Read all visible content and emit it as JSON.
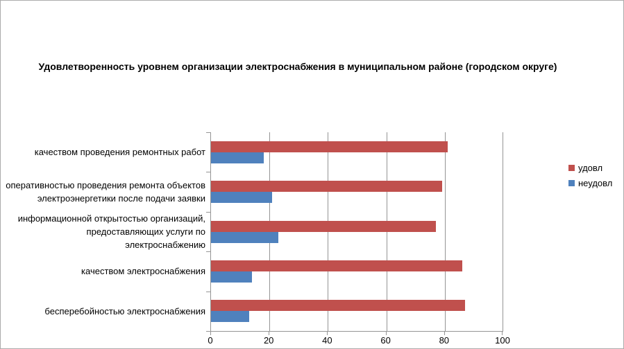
{
  "chart_data": {
    "type": "bar",
    "orientation": "horizontal",
    "title": "Удовлетворенность уровнем организации электроснабжения в муниципальном районе (городском округе)",
    "categories": [
      "качеством проведения ремонтных работ",
      "оперативностью проведения ремонта объектов электроэнергетики после подачи заявки",
      "информационной открытостью организаций, предоставляющих услуги по электроснабжению",
      "качеством электроснабжения",
      "бесперебойностью электроснабжения"
    ],
    "series": [
      {
        "name": "удовл",
        "color": "#C0504D",
        "values": [
          81,
          79,
          77,
          86,
          87
        ]
      },
      {
        "name": "неудовл",
        "color": "#4F81BD",
        "values": [
          18,
          21,
          23,
          14,
          13
        ]
      }
    ],
    "xlim": [
      0,
      100
    ],
    "x_ticks": [
      0,
      20,
      40,
      60,
      80,
      100
    ],
    "grid": "vertical",
    "legend_position": "right",
    "colors": {
      "gridline": "#949494",
      "axis": "#949494",
      "text": "#000000",
      "background": "#FFFFFF",
      "frame_border": "#ABABAB"
    }
  }
}
